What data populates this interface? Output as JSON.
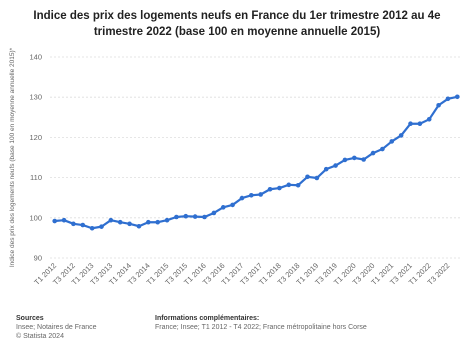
{
  "chart_data": {
    "type": "line",
    "title": "Indice des prix des logements neufs en France du 1er trimestre 2012 au 4e trimestre 2022 (base 100 en moyenne annuelle 2015)",
    "y_label": "Indice des prix des logements neufs (base 100 en moyenne annuelle 2015)*",
    "categories": [
      "T1 2012",
      null,
      "T3 2012",
      null,
      "T1 2013",
      null,
      "T3 2013",
      null,
      "T1 2014",
      null,
      "T3 2014",
      null,
      "T1 2015",
      null,
      "T3 2015",
      null,
      "T1 2016",
      null,
      "T3 2016",
      null,
      "T1 2017",
      null,
      "T3 2017",
      null,
      "T1 2018",
      null,
      "T3 2018",
      null,
      "T1 2019",
      null,
      "T3 2019",
      null,
      "T1 2020",
      null,
      "T3 2020",
      null,
      "T1 2021",
      null,
      "T3 2021",
      null,
      "T1 2022",
      null,
      "T3 2022",
      null
    ],
    "values": [
      99.2,
      99.4,
      98.5,
      98.2,
      97.4,
      97.8,
      99.4,
      98.9,
      98.5,
      97.9,
      98.9,
      98.9,
      99.4,
      100.2,
      100.4,
      100.3,
      100.2,
      101.2,
      102.6,
      103.2,
      104.9,
      105.6,
      105.8,
      107.1,
      107.4,
      108.2,
      108.1,
      110.2,
      109.9,
      112.1,
      113.0,
      114.4,
      114.9,
      114.5,
      116.1,
      117.1,
      119.0,
      120.5,
      123.4,
      123.4,
      124.5,
      128.0,
      129.6,
      130.1
    ],
    "color": "#2f6fd0",
    "ylim": [
      90,
      140
    ],
    "yticks": [
      90,
      100,
      110,
      120,
      130,
      140
    ],
    "grid": true
  },
  "footer": {
    "sources_label": "Sources",
    "sources": "Insee; Notaires de France",
    "copyright": "© Statista 2024",
    "info_label": "Informations complémentaires:",
    "info": "France; Insee; T1 2012 - T4 2022; France métropolitaine hors Corse"
  }
}
